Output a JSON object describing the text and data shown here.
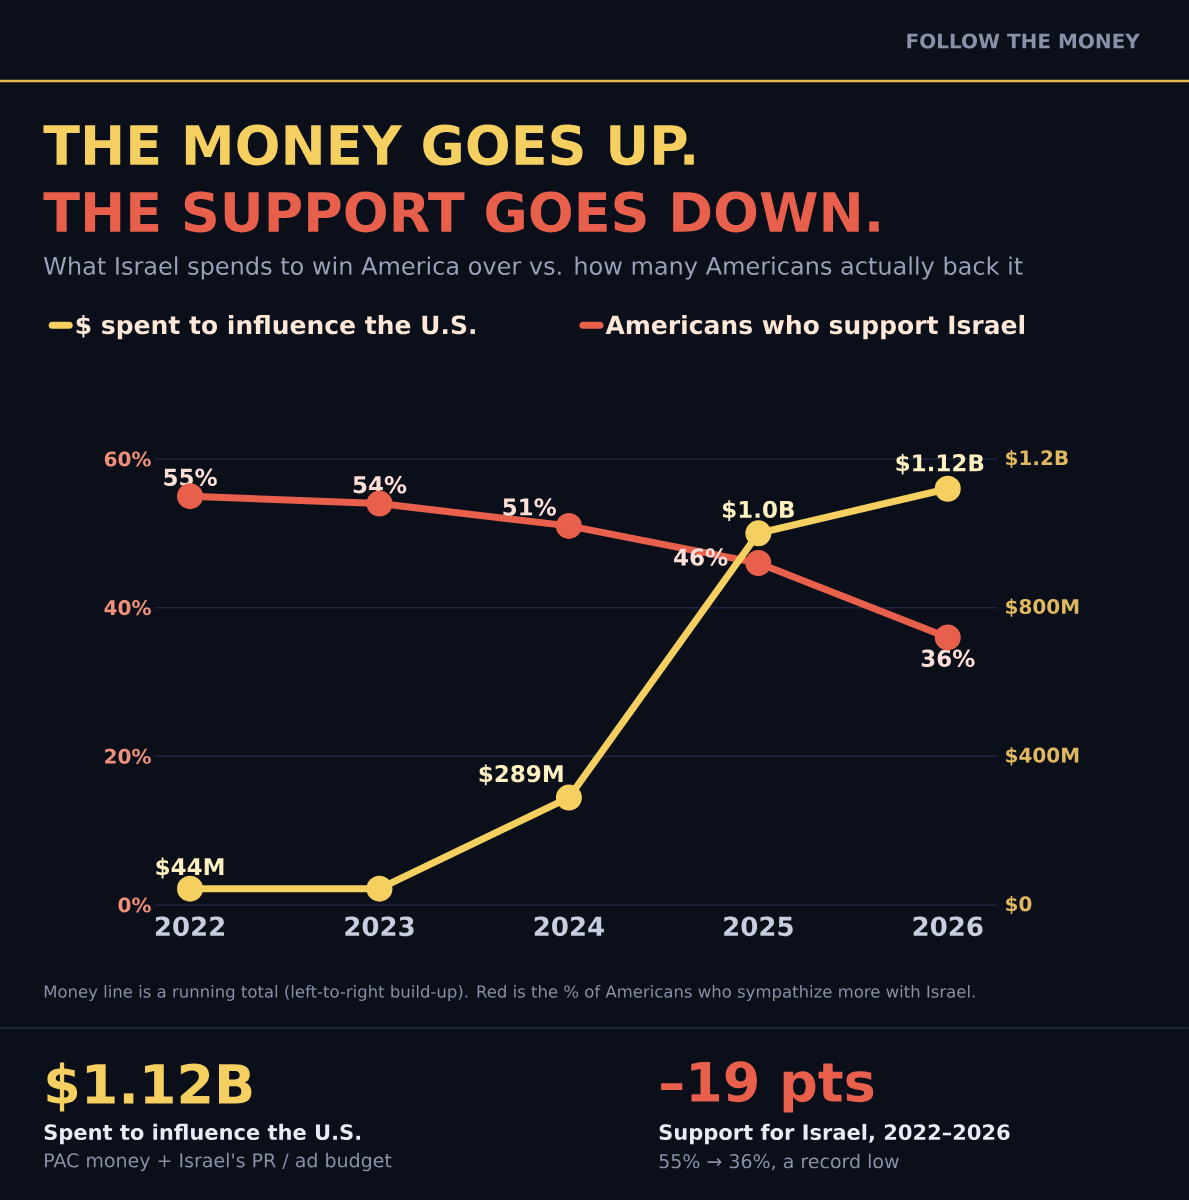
{
  "chart_data": {
    "type": "line",
    "title": "THE MONEY GOES UP.",
    "subtitle": "What Israel spends to win America over vs. how many Americans actually back it",
    "categories": [
      "2022",
      "2023",
      "2024",
      "2025",
      "2026"
    ],
    "series": [
      {
        "name": "$ spent to influence the U.S.",
        "color": "#f5d060",
        "axis": "y2",
        "values": [
          44000000,
          44000000,
          289000000,
          1000000000,
          1120000000
        ],
        "value_labels": [
          "$44M",
          null,
          "$289M",
          "$1.0B",
          "$1.12B"
        ]
      },
      {
        "name": "Americans who support Israel",
        "color": "#e8604c",
        "axis": "y",
        "values": [
          55,
          54,
          51,
          46,
          36
        ],
        "value_labels": [
          "55%",
          "54%",
          "51%",
          "46%",
          "36%"
        ]
      }
    ],
    "ylim": [
      0,
      60
    ],
    "yticks": [
      {
        "value": 0,
        "label": "0%"
      },
      {
        "value": 20,
        "label": "20%"
      },
      {
        "value": 40,
        "label": "40%"
      },
      {
        "value": 60,
        "label": "60%"
      }
    ],
    "y2lim": [
      0,
      1200000000
    ],
    "y2ticks": [
      {
        "value": 0,
        "label": "$0"
      },
      {
        "value": 400000000,
        "label": "$400M"
      },
      {
        "value": 800000000,
        "label": "$800M"
      },
      {
        "value": 1200000000,
        "label": "$1.2B"
      }
    ],
    "grid": "y",
    "legend": "top",
    "marker": "circle",
    "line_style": "solid",
    "annotations": [
      "THE SUPPORT GOES DOWN.",
      "FOLLOW THE MONEY",
      "Money line is a running total (left-to-right build-up). Red is the % of Americans who sympathize more with Israel.",
      "$1.12B",
      "Spent to influence the U.S.",
      "PAC money + Israel's PR / ad budget",
      "–19 pts",
      "Support for Israel, 2022–2026",
      "55% → 36%, a record low"
    ]
  }
}
